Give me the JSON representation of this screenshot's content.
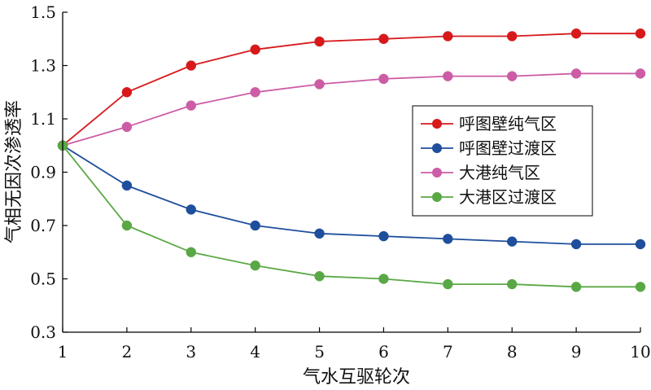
{
  "chart_data": {
    "type": "line",
    "title": "",
    "xlabel": "气水互驱轮次",
    "ylabel": "气相无因次渗透率",
    "x": [
      1,
      2,
      3,
      4,
      5,
      6,
      7,
      8,
      9,
      10
    ],
    "xlim": [
      1,
      10
    ],
    "ylim": [
      0.3,
      1.5
    ],
    "xticks": [
      "1",
      "2",
      "3",
      "4",
      "5",
      "6",
      "7",
      "8",
      "9",
      "10"
    ],
    "yticks": [
      "0.3",
      "0.5",
      "0.7",
      "0.9",
      "1.1",
      "1.3",
      "1.5"
    ],
    "grid": false,
    "legend_position": "right-center",
    "series": [
      {
        "name": "呼图壁纯气区",
        "color": "#d7191c",
        "values": [
          1.0,
          1.2,
          1.3,
          1.36,
          1.39,
          1.4,
          1.41,
          1.41,
          1.42,
          1.42
        ]
      },
      {
        "name": "呼图壁过渡区",
        "color": "#1f4e9c",
        "values": [
          1.0,
          0.85,
          0.76,
          0.7,
          0.67,
          0.66,
          0.65,
          0.64,
          0.63,
          0.63
        ]
      },
      {
        "name": "大港纯气区",
        "color": "#cc5ca6",
        "values": [
          1.0,
          1.07,
          1.15,
          1.2,
          1.23,
          1.25,
          1.26,
          1.26,
          1.27,
          1.27
        ]
      },
      {
        "name": "大港区过渡区",
        "color": "#5aa845",
        "values": [
          1.0,
          0.7,
          0.6,
          0.55,
          0.51,
          0.5,
          0.48,
          0.48,
          0.47,
          0.47
        ]
      }
    ]
  }
}
